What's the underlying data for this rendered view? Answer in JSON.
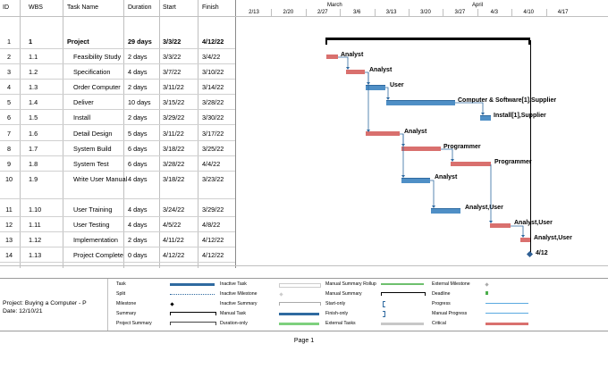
{
  "table": {
    "headers": {
      "id": "ID",
      "wbs": "WBS",
      "name": "Task Name",
      "duration": "Duration",
      "start": "Start",
      "finish": "Finish"
    },
    "rows": [
      {
        "id": "1",
        "wbs": "1",
        "name": "Project",
        "duration": "29 days",
        "start": "3/3/22",
        "finish": "4/12/22",
        "summary": true
      },
      {
        "id": "2",
        "wbs": "1.1",
        "name": "Feasibility Study",
        "duration": "2 days",
        "start": "3/3/22",
        "finish": "3/4/22"
      },
      {
        "id": "3",
        "wbs": "1.2",
        "name": "Specification",
        "duration": "4 days",
        "start": "3/7/22",
        "finish": "3/10/22"
      },
      {
        "id": "4",
        "wbs": "1.3",
        "name": "Order Computer",
        "duration": "2 days",
        "start": "3/11/22",
        "finish": "3/14/22"
      },
      {
        "id": "5",
        "wbs": "1.4",
        "name": "Deliver",
        "duration": "10 days",
        "start": "3/15/22",
        "finish": "3/28/22"
      },
      {
        "id": "6",
        "wbs": "1.5",
        "name": "Install",
        "duration": "2 days",
        "start": "3/29/22",
        "finish": "3/30/22"
      },
      {
        "id": "7",
        "wbs": "1.6",
        "name": "Detail Design",
        "duration": "5 days",
        "start": "3/11/22",
        "finish": "3/17/22"
      },
      {
        "id": "8",
        "wbs": "1.7",
        "name": "System Build",
        "duration": "6 days",
        "start": "3/18/22",
        "finish": "3/25/22"
      },
      {
        "id": "9",
        "wbs": "1.8",
        "name": "System Test",
        "duration": "6 days",
        "start": "3/28/22",
        "finish": "4/4/22"
      },
      {
        "id": "10",
        "wbs": "1.9",
        "name": "Write User Manual",
        "duration": "4 days",
        "start": "3/18/22",
        "finish": "3/23/22"
      },
      {
        "id": "11",
        "wbs": "1.10",
        "name": "User Training",
        "duration": "4 days",
        "start": "3/24/22",
        "finish": "3/29/22"
      },
      {
        "id": "12",
        "wbs": "1.11",
        "name": "User Testing",
        "duration": "4 days",
        "start": "4/5/22",
        "finish": "4/8/22"
      },
      {
        "id": "13",
        "wbs": "1.12",
        "name": "Implementation",
        "duration": "2 days",
        "start": "4/11/22",
        "finish": "4/12/22"
      },
      {
        "id": "14",
        "wbs": "1.13",
        "name": "Project Complete",
        "duration": "0 days",
        "start": "4/12/22",
        "finish": "4/12/22"
      }
    ]
  },
  "timescale": {
    "months": [
      {
        "label": "March"
      },
      {
        "label": "April"
      }
    ],
    "weeks": [
      "2/13",
      "2/20",
      "2/27",
      "3/6",
      "3/13",
      "3/20",
      "3/27",
      "4/3",
      "4/10",
      "4/17"
    ]
  },
  "gantt_labels": {
    "feasibility": "Analyst",
    "spec": "Analyst",
    "order": "User",
    "deliver": "Computer & Software[1],Supplier",
    "install": "Install[1],Supplier",
    "design": "Analyst",
    "build": "Programmer",
    "test": "Programmer",
    "manual": "Analyst",
    "training": "Analyst,User",
    "usertest": "Analyst,User",
    "impl": "Analyst,User",
    "milestone": "4/12"
  },
  "legend": {
    "project_name": "Project: Buying a Computer - P",
    "project_date": "Date: 12/10/21",
    "col1": [
      "Task",
      "Split",
      "Milestone",
      "Summary",
      "Project Summary"
    ],
    "col2": [
      "Inactive Task",
      "Inactive Milestone",
      "Inactive Summary",
      "Manual Task",
      "Duration-only"
    ],
    "col3": [
      "Manual Summary Rollup",
      "Manual Summary",
      "Start-only",
      "Finish-only",
      "External Tasks"
    ],
    "col4": [
      "External Milestone",
      "Deadline",
      "Progress",
      "Manual Progress",
      "Critical"
    ]
  },
  "colors": {
    "critical": "#d9706e",
    "task": "#4f8fc6",
    "summary": "#000000",
    "grid": "#bfbfbf"
  },
  "footer": {
    "page": "Page 1"
  }
}
